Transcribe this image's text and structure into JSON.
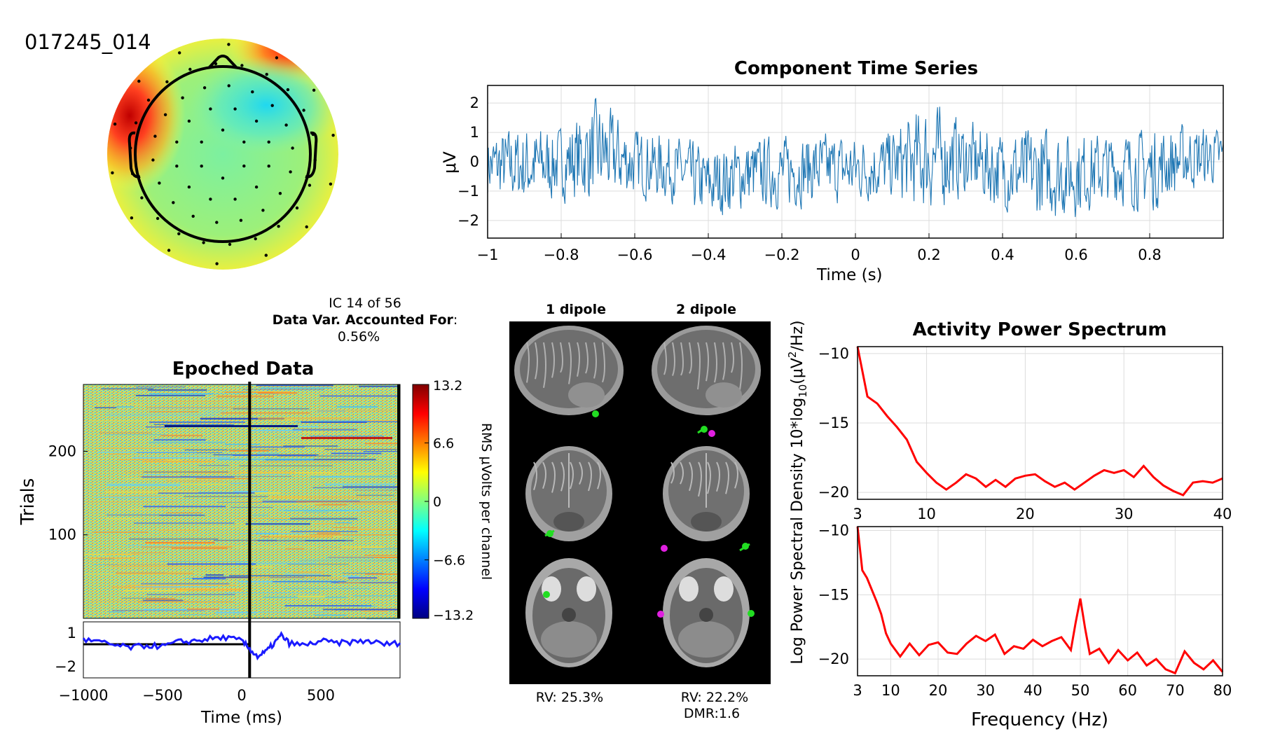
{
  "figure_id": "017245_014",
  "ic_info": {
    "line1": "IC 14 of 56",
    "line2_bold": "Data Var. Accounted For",
    "line2_suffix": ":",
    "line3": "0.56%"
  },
  "dipole": {
    "col1_label": "1 dipole",
    "col2_label": "2 dipole",
    "rv1": "RV: 25.3%",
    "rv2": "RV: 22.2%",
    "dmr": "DMR:1.6",
    "dot_colors": {
      "green": "#22dd22",
      "magenta": "#e020e0"
    }
  },
  "colorbar": {
    "ticks": [
      "13.2",
      "6.6",
      "0",
      "-6.6",
      "-13.2"
    ],
    "label": "RMS μVolts per channel"
  },
  "colors": {
    "trace_blue": "#1f77b4",
    "erp_blue": "#1a1aff",
    "spectrum_red": "#ff0000"
  },
  "chart_data": [
    {
      "type": "line",
      "title": "Component Time Series",
      "xlabel": "Time (s)",
      "ylabel": "μV",
      "xlim": [
        -1,
        1
      ],
      "ylim": [
        -2.6,
        2.6
      ],
      "xticks": [
        "−1",
        "−0.8",
        "−0.6",
        "−0.4",
        "−0.2",
        "0",
        "0.2",
        "0.4",
        "0.6",
        "0.8"
      ],
      "xtick_values": [
        -1,
        -0.8,
        -0.6,
        -0.4,
        -0.2,
        0,
        0.2,
        0.4,
        0.6,
        0.8
      ],
      "yticks": [
        "2",
        "1",
        "0",
        "−1",
        "−2"
      ],
      "ytick_values": [
        2,
        1,
        0,
        -1,
        -2
      ],
      "grid": true,
      "envelope_x": [
        -1,
        -0.9,
        -0.8,
        -0.7,
        -0.6,
        -0.5,
        -0.4,
        -0.3,
        -0.2,
        -0.1,
        0,
        0.1,
        0.2,
        0.3,
        0.4,
        0.5,
        0.6,
        0.7,
        0.8,
        0.9,
        1
      ],
      "envelope_max": [
        1.2,
        1.5,
        1.4,
        2.4,
        1.3,
        1.1,
        0.7,
        1.0,
        1.1,
        1.2,
        1.1,
        1.3,
        2.4,
        1.6,
        1.3,
        1.5,
        1.3,
        1.2,
        1.4,
        1.5,
        1.3
      ],
      "envelope_min": [
        -1.4,
        -1.8,
        -1.5,
        -1.7,
        -1.4,
        -1.5,
        -2.3,
        -1.8,
        -1.8,
        -1.6,
        -1.6,
        -1.5,
        -2.1,
        -1.4,
        -1.9,
        -2.3,
        -2.1,
        -1.6,
        -2.0,
        -1.2,
        -0.9
      ]
    },
    {
      "type": "heatmap",
      "title": "Epoched Data",
      "xlabel": "Time (ms)",
      "ylabel": "Trials",
      "xlim": [
        -1000,
        1000
      ],
      "ylim": [
        0,
        280
      ],
      "xticks": [
        "−1000",
        "−500",
        "0",
        "500"
      ],
      "xtick_values": [
        -1000,
        -500,
        0,
        500
      ],
      "yticks": [
        "200",
        "100"
      ],
      "ytick_values": [
        200,
        100
      ],
      "clim": [
        -13.2,
        13.2
      ],
      "event_marker_ms": 50
    },
    {
      "type": "line",
      "title": "",
      "xlim": [
        -1000,
        1000
      ],
      "ylim": [
        -3,
        2
      ],
      "yticks": [
        "1",
        "−2"
      ],
      "ytick_values": [
        1,
        -2
      ],
      "baseline": 0,
      "x": [
        -1000,
        -900,
        -800,
        -700,
        -600,
        -500,
        -400,
        -300,
        -200,
        -100,
        0,
        50,
        100,
        150,
        200,
        250,
        300,
        400,
        500,
        600,
        700,
        800,
        900,
        1000
      ],
      "y": [
        0.4,
        0.2,
        -0.1,
        -0.3,
        -0.1,
        -0.2,
        0.2,
        0.3,
        0.5,
        0.6,
        0.3,
        -0.4,
        -1.1,
        -0.7,
        0.0,
        0.8,
        0.1,
        -0.1,
        0.3,
        0.1,
        0.2,
        0.3,
        0.0,
        0.1
      ]
    },
    {
      "type": "line",
      "title": "Activity Power Spectrum",
      "ylabel": "Log Power Spectral Density 10*log10(μV²/Hz)",
      "xlim": [
        3,
        40
      ],
      "ylim": [
        -20.5,
        -9.5
      ],
      "xticks": [
        "3",
        "10",
        "20",
        "30",
        "40"
      ],
      "xtick_values": [
        3,
        10,
        20,
        30,
        40
      ],
      "yticks": [
        "−10",
        "−15",
        "−20"
      ],
      "ytick_values": [
        -10,
        -15,
        -20
      ],
      "grid": true,
      "x": [
        3,
        4,
        5,
        6,
        7,
        8,
        9,
        10,
        11,
        12,
        13,
        14,
        15,
        16,
        17,
        18,
        19,
        20,
        21,
        22,
        23,
        24,
        25,
        26,
        27,
        28,
        29,
        30,
        31,
        32,
        33,
        34,
        35,
        36,
        37,
        38,
        39,
        40
      ],
      "y": [
        -9.5,
        -13.1,
        -13.6,
        -14.5,
        -15.3,
        -16.2,
        -17.8,
        -18.6,
        -19.3,
        -19.8,
        -19.3,
        -18.7,
        -19.0,
        -19.6,
        -19.1,
        -19.6,
        -19.0,
        -18.8,
        -18.7,
        -19.2,
        -19.6,
        -19.3,
        -19.8,
        -19.3,
        -18.8,
        -18.4,
        -18.6,
        -18.4,
        -18.9,
        -18.1,
        -18.9,
        -19.5,
        -19.9,
        -20.2,
        -19.3,
        -19.2,
        -19.3,
        -19.0
      ]
    },
    {
      "type": "line",
      "title": "",
      "xlabel": "Frequency (Hz)",
      "xlim": [
        3,
        80
      ],
      "ylim": [
        -21.3,
        -9.7
      ],
      "xticks": [
        "3",
        "10",
        "20",
        "30",
        "40",
        "50",
        "60",
        "70",
        "80"
      ],
      "xtick_values": [
        3,
        10,
        20,
        30,
        40,
        50,
        60,
        70,
        80
      ],
      "yticks": [
        "−10",
        "−15",
        "−20"
      ],
      "ytick_values": [
        -10,
        -15,
        -20
      ],
      "grid": true,
      "x": [
        3,
        4,
        5,
        6,
        7,
        8,
        9,
        10,
        12,
        14,
        16,
        18,
        20,
        22,
        24,
        26,
        28,
        30,
        32,
        34,
        36,
        38,
        40,
        42,
        44,
        46,
        48,
        49,
        50,
        51,
        52,
        54,
        56,
        58,
        60,
        62,
        64,
        66,
        68,
        70,
        72,
        74,
        76,
        78,
        80
      ],
      "y": [
        -9.7,
        -13.1,
        -13.7,
        -14.6,
        -15.5,
        -16.5,
        -18.0,
        -18.8,
        -19.8,
        -18.8,
        -19.7,
        -18.9,
        -18.7,
        -19.5,
        -19.6,
        -18.8,
        -18.2,
        -18.6,
        -18.1,
        -19.6,
        -19.0,
        -19.2,
        -18.5,
        -19.0,
        -18.6,
        -18.3,
        -19.3,
        -17.2,
        -15.3,
        -17.6,
        -19.6,
        -19.2,
        -20.3,
        -19.3,
        -20.1,
        -19.5,
        -20.5,
        -20.0,
        -20.8,
        -21.1,
        -19.4,
        -20.3,
        -20.8,
        -20.1,
        -21.0
      ]
    }
  ]
}
